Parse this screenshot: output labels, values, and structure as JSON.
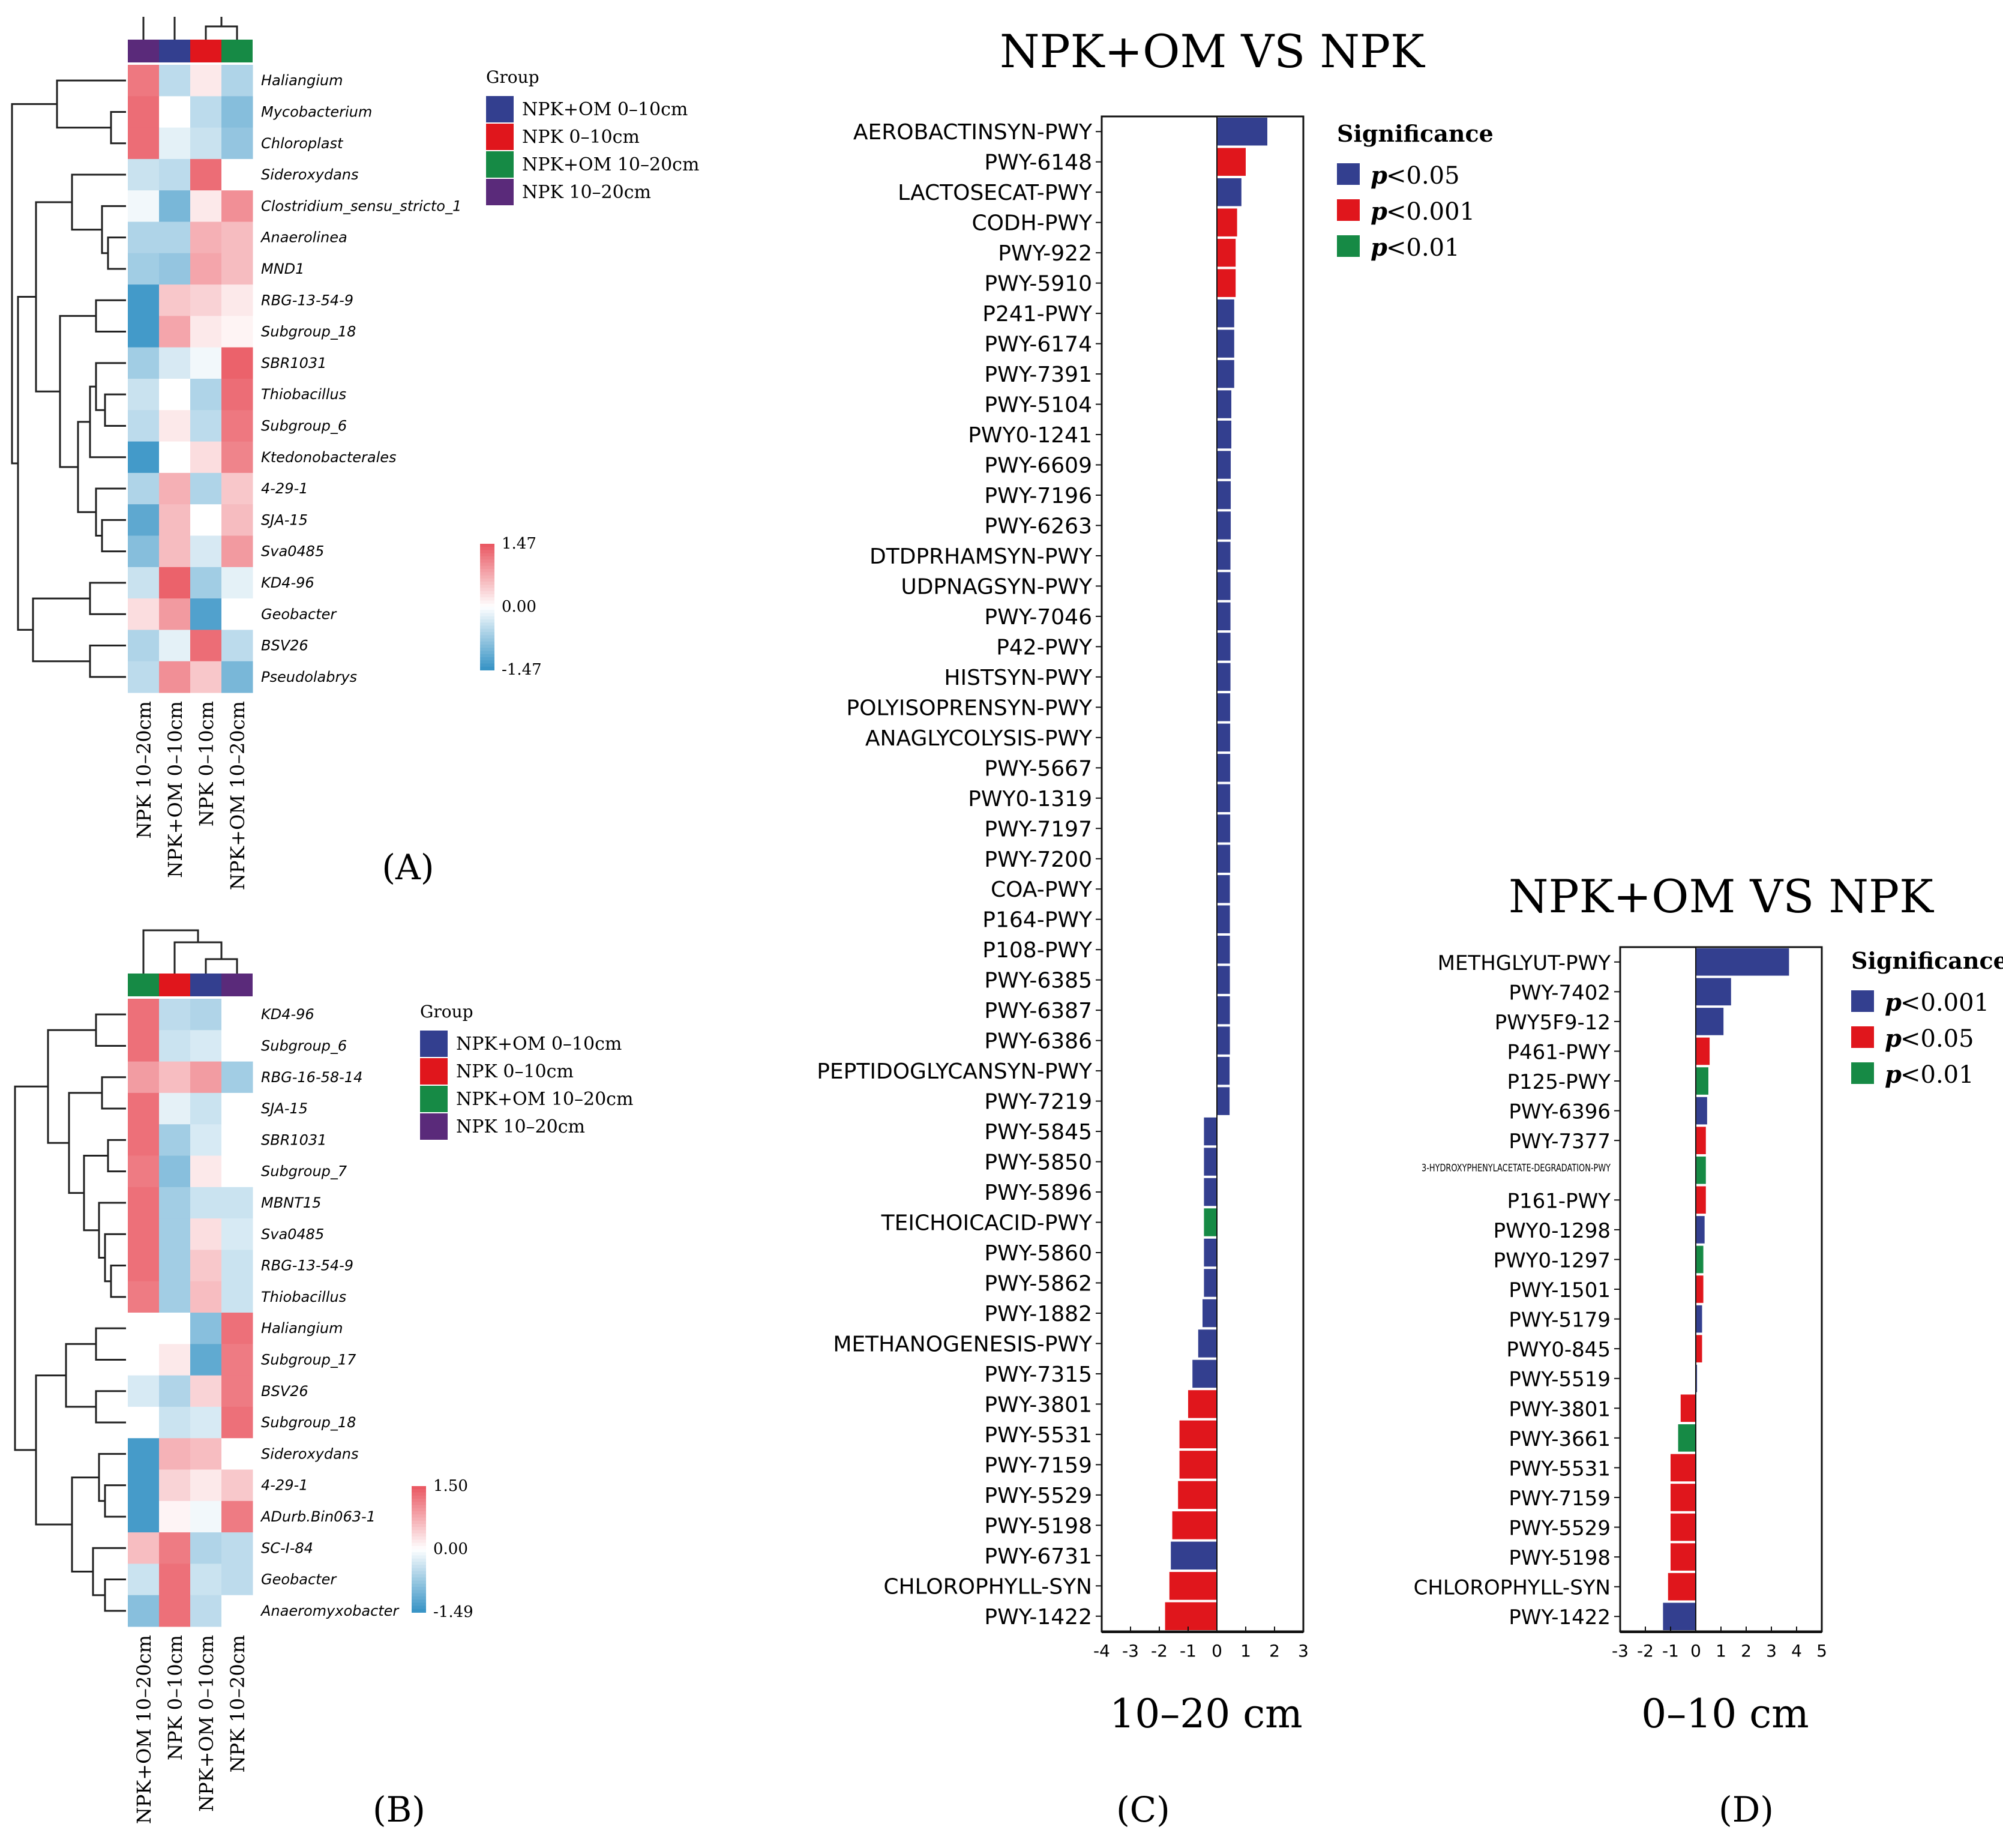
{
  "colors": {
    "blue": "#333f8f",
    "red": "#e0161c",
    "green": "#168a45",
    "purple": "#5a2a7a",
    "heat_low": "#3a95c6",
    "heat_mid": "#ffffff",
    "heat_high": "#ea5a64"
  },
  "panels": {
    "A": {
      "label": "(A)"
    },
    "B": {
      "label": "(B)"
    },
    "C": {
      "label": "(C)"
    },
    "D": {
      "label": "(D)"
    }
  },
  "chart_data": [
    {
      "id": "A",
      "type": "heatmap",
      "columns": [
        "NPK 10–20cm",
        "NPK+OM 0–10cm",
        "NPK 0–10cm",
        "NPK+OM 10–20cm"
      ],
      "column_colors": [
        "purple",
        "blue",
        "red",
        "green"
      ],
      "rows": [
        "Haliangium",
        "Mycobacterium",
        "Chloroplast",
        "Sideroxydans",
        "Clostridium_sensu_stricto_1",
        "Anaerolinea",
        "MND1",
        "RBG-13-54-9",
        "Subgroup_18",
        "SBR1031",
        "Thiobacillus",
        "Subgroup_6",
        "Ktedonobacterales",
        "4-29-1",
        "SJA-15",
        "Sva0485",
        "KD4-96",
        "Geobacter",
        "BSV26",
        "Pseudolabrys"
      ],
      "values": [
        [
          1.2,
          -0.5,
          0.2,
          -0.6
        ],
        [
          1.3,
          0.0,
          -0.5,
          -0.9
        ],
        [
          1.3,
          -0.2,
          -0.4,
          -0.8
        ],
        [
          -0.4,
          -0.5,
          1.3,
          0.0
        ],
        [
          -0.1,
          -1.0,
          0.2,
          1.0
        ],
        [
          -0.6,
          -0.6,
          0.7,
          0.6
        ],
        [
          -0.7,
          -0.8,
          0.8,
          0.6
        ],
        [
          -1.4,
          0.5,
          0.4,
          0.2
        ],
        [
          -1.4,
          0.8,
          0.2,
          0.1
        ],
        [
          -0.7,
          -0.3,
          -0.1,
          1.4
        ],
        [
          -0.4,
          0.0,
          -0.6,
          1.3
        ],
        [
          -0.5,
          0.2,
          -0.5,
          1.2
        ],
        [
          -1.4,
          0.0,
          0.3,
          1.1
        ],
        [
          -0.6,
          0.7,
          -0.6,
          0.5
        ],
        [
          -1.2,
          0.6,
          0.0,
          0.6
        ],
        [
          -0.9,
          0.6,
          -0.3,
          0.9
        ],
        [
          -0.4,
          1.4,
          -0.7,
          -0.2
        ],
        [
          0.3,
          0.9,
          -1.3,
          0.0
        ],
        [
          -0.6,
          -0.2,
          1.3,
          -0.5
        ],
        [
          -0.5,
          1.0,
          0.5,
          -1.0
        ]
      ],
      "color_scale": {
        "min": -1.47,
        "max": 1.47,
        "ticks": [
          "1.47",
          "0.00",
          "-1.47"
        ]
      },
      "legend": {
        "title": "Group",
        "entries": [
          {
            "label": "NPK+OM 0–10cm",
            "color": "blue"
          },
          {
            "label": "NPK 0–10cm",
            "color": "red"
          },
          {
            "label": "NPK+OM 10–20cm",
            "color": "green"
          },
          {
            "label": "NPK 10–20cm",
            "color": "purple"
          }
        ]
      }
    },
    {
      "id": "B",
      "type": "heatmap",
      "columns": [
        "NPK+OM 10–20cm",
        "NPK 0–10cm",
        "NPK+OM 0–10cm",
        "NPK 10–20cm"
      ],
      "column_colors": [
        "green",
        "red",
        "blue",
        "purple"
      ],
      "rows": [
        "KD4-96",
        "Subgroup_6",
        "RBG-16-58-14",
        "SJA-15",
        "SBR1031",
        "Subgroup_7",
        "MBNT15",
        "Sva0485",
        "RBG-13-54-9",
        "Thiobacillus",
        "Haliangium",
        "Subgroup_17",
        "BSV26",
        "Subgroup_18",
        "Sideroxydans",
        "4-29-1",
        "ADurb.Bin063-1",
        "SC-I-84",
        "Geobacter",
        "Anaeromyxobacter"
      ],
      "values": [
        [
          1.3,
          -0.5,
          -0.6,
          0.0
        ],
        [
          1.3,
          -0.4,
          -0.3,
          0.0
        ],
        [
          0.9,
          0.6,
          0.9,
          -0.7
        ],
        [
          1.3,
          -0.2,
          -0.4,
          0.0
        ],
        [
          1.3,
          -0.7,
          -0.3,
          0.0
        ],
        [
          1.2,
          -0.9,
          0.2,
          0.0
        ],
        [
          1.3,
          -0.7,
          -0.4,
          -0.4
        ],
        [
          1.3,
          -0.7,
          0.3,
          -0.3
        ],
        [
          1.3,
          -0.7,
          0.5,
          -0.4
        ],
        [
          1.2,
          -0.7,
          0.6,
          -0.4
        ],
        [
          0.0,
          0.0,
          -0.9,
          1.3
        ],
        [
          0.0,
          0.2,
          -1.2,
          1.2
        ],
        [
          -0.3,
          -0.6,
          0.4,
          1.2
        ],
        [
          0.0,
          -0.4,
          -0.3,
          1.3
        ],
        [
          -1.4,
          0.7,
          0.6,
          0.0
        ],
        [
          -1.4,
          0.4,
          0.2,
          0.5
        ],
        [
          -1.4,
          0.1,
          -0.1,
          1.2
        ],
        [
          0.6,
          1.2,
          -0.6,
          -0.5
        ],
        [
          -0.4,
          1.3,
          -0.4,
          -0.5
        ],
        [
          -0.9,
          1.3,
          -0.5,
          0.0
        ]
      ],
      "color_scale": {
        "min": -1.49,
        "max": 1.5,
        "ticks": [
          "1.50",
          "0.00",
          "-1.49"
        ]
      },
      "legend": {
        "title": "Group",
        "entries": [
          {
            "label": "NPK+OM 0–10cm",
            "color": "blue"
          },
          {
            "label": "NPK 0–10cm",
            "color": "red"
          },
          {
            "label": "NPK+OM 10–20cm",
            "color": "green"
          },
          {
            "label": "NPK 10–20cm",
            "color": "purple"
          }
        ]
      }
    },
    {
      "id": "C",
      "type": "bar",
      "orientation": "horizontal",
      "title": "NPK+OM VS NPK",
      "xlabel": "10–20 cm",
      "xlim": [
        -4,
        3
      ],
      "xticks": [
        "-4",
        "-3",
        "-2",
        "-1",
        "0",
        "1",
        "2",
        "3"
      ],
      "legend": {
        "title": "Significance",
        "entries": [
          {
            "label": "<0.05",
            "color": "blue"
          },
          {
            "label": "<0.001",
            "color": "red"
          },
          {
            "label": "<0.01",
            "color": "green"
          }
        ]
      },
      "categories": [
        "AEROBACTINSYN-PWY",
        "PWY-6148",
        "LACTOSECAT-PWY",
        "CODH-PWY",
        "PWY-922",
        "PWY-5910",
        "P241-PWY",
        "PWY-6174",
        "PWY-7391",
        "PWY-5104",
        "PWY0-1241",
        "PWY-6609",
        "PWY-7196",
        "PWY-6263",
        "DTDPRHAMSYN-PWY",
        "UDPNAGSYN-PWY",
        "PWY-7046",
        "P42-PWY",
        "HISTSYN-PWY",
        "POLYISOPRENSYN-PWY",
        "ANAGLYCOLYSIS-PWY",
        "PWY-5667",
        "PWY0-1319",
        "PWY-7197",
        "PWY-7200",
        "COA-PWY",
        "P164-PWY",
        "P108-PWY",
        "PWY-6385",
        "PWY-6387",
        "PWY-6386",
        "PEPTIDOGLYCANSYN-PWY",
        "PWY-7219",
        "PWY-5845",
        "PWY-5850",
        "PWY-5896",
        "TEICHOICACID-PWY",
        "PWY-5860",
        "PWY-5862",
        "PWY-1882",
        "METHANOGENESIS-PWY",
        "PWY-7315",
        "PWY-3801",
        "PWY-5531",
        "PWY-7159",
        "PWY-5529",
        "PWY-5198",
        "PWY-6731",
        "CHLOROPHYLL-SYN",
        "PWY-1422"
      ],
      "values": [
        1.75,
        1.0,
        0.85,
        0.7,
        0.65,
        0.65,
        0.6,
        0.6,
        0.6,
        0.5,
        0.5,
        0.48,
        0.48,
        0.48,
        0.47,
        0.47,
        0.47,
        0.47,
        0.47,
        0.46,
        0.46,
        0.46,
        0.46,
        0.46,
        0.46,
        0.45,
        0.45,
        0.45,
        0.45,
        0.45,
        0.45,
        0.44,
        0.44,
        -0.45,
        -0.45,
        -0.45,
        -0.45,
        -0.45,
        -0.45,
        -0.5,
        -0.65,
        -0.85,
        -1.0,
        -1.3,
        -1.3,
        -1.35,
        -1.55,
        -1.6,
        -1.65,
        -1.8
      ],
      "significance": [
        "blue",
        "red",
        "blue",
        "red",
        "red",
        "red",
        "blue",
        "blue",
        "blue",
        "blue",
        "blue",
        "blue",
        "blue",
        "blue",
        "blue",
        "blue",
        "blue",
        "blue",
        "blue",
        "blue",
        "blue",
        "blue",
        "blue",
        "blue",
        "blue",
        "blue",
        "blue",
        "blue",
        "blue",
        "blue",
        "blue",
        "blue",
        "blue",
        "blue",
        "blue",
        "blue",
        "green",
        "blue",
        "blue",
        "blue",
        "blue",
        "blue",
        "red",
        "red",
        "red",
        "red",
        "red",
        "blue",
        "red",
        "red"
      ]
    },
    {
      "id": "D",
      "type": "bar",
      "orientation": "horizontal",
      "title": "NPK+OM VS NPK",
      "xlabel": "0–10 cm",
      "xlim": [
        -3,
        5
      ],
      "xticks": [
        "-3",
        "-2",
        "-1",
        "0",
        "1",
        "2",
        "3",
        "4",
        "5"
      ],
      "legend": {
        "title": "Significance",
        "entries": [
          {
            "label": "<0.001",
            "color": "blue"
          },
          {
            "label": "<0.05",
            "color": "red"
          },
          {
            "label": "<0.01",
            "color": "green"
          }
        ]
      },
      "categories": [
        "METHGLYUT-PWY",
        "PWY-7402",
        "PWY5F9-12",
        "P461-PWY",
        "P125-PWY",
        "PWY-6396",
        "PWY-7377",
        "3-HYDROXYPHENYLACETATE-DEGRADATION-PWY",
        "P161-PWY",
        "PWY0-1298",
        "PWY0-1297",
        "PWY-1501",
        "PWY-5179",
        "PWY0-845",
        "PWY-5519",
        "PWY-3801",
        "PWY-3661",
        "PWY-5531",
        "PWY-7159",
        "PWY-5529",
        "PWY-5198",
        "CHLOROPHYLL-SYN",
        "PWY-1422"
      ],
      "values": [
        3.7,
        1.4,
        1.1,
        0.55,
        0.5,
        0.45,
        0.4,
        0.4,
        0.4,
        0.35,
        0.3,
        0.3,
        0.25,
        0.25,
        0.05,
        -0.6,
        -0.7,
        -1.0,
        -1.0,
        -1.0,
        -1.0,
        -1.1,
        -1.3
      ],
      "significance": [
        "blue",
        "blue",
        "blue",
        "red",
        "green",
        "blue",
        "red",
        "green",
        "red",
        "blue",
        "green",
        "red",
        "blue",
        "red",
        "blue",
        "red",
        "green",
        "red",
        "red",
        "red",
        "red",
        "red",
        "blue"
      ]
    }
  ]
}
